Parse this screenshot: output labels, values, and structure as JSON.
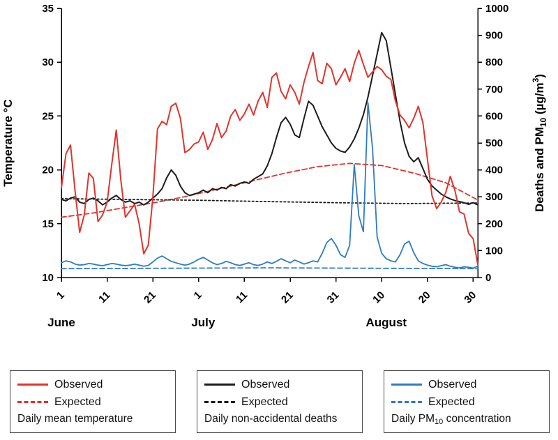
{
  "chart_data": {
    "type": "line",
    "title": "",
    "x": {
      "total_days": 91,
      "tick_days": [
        0,
        10,
        20,
        30,
        40,
        50,
        60,
        70,
        80,
        90
      ],
      "tick_labels": [
        "1",
        "11",
        "21",
        "1",
        "11",
        "21",
        "31",
        "10",
        "20",
        "30"
      ],
      "months": [
        {
          "label": "June",
          "day": 0
        },
        {
          "label": "July",
          "day": 31
        },
        {
          "label": "August",
          "day": 71
        }
      ]
    },
    "axes": {
      "left": {
        "label": "Temperature  °C",
        "min": 10,
        "max": 35,
        "ticks": [
          35,
          30,
          25,
          20,
          15,
          10
        ]
      },
      "right": {
        "label_parts": [
          {
            "t": "Deaths and PM"
          },
          {
            "t": "10",
            "pos": "sub"
          },
          {
            "t": " (µg/m"
          },
          {
            "t": "3",
            "pos": "sup"
          },
          {
            "t": ")"
          }
        ],
        "min": 0,
        "max": 1000,
        "ticks": [
          1000,
          900,
          800,
          700,
          600,
          500,
          400,
          300,
          200,
          100,
          0
        ]
      }
    },
    "series": [
      {
        "id": "temp-observed",
        "name": "Daily mean temperature — Observed",
        "axis": "left",
        "color": "#e0342c",
        "style": "solid",
        "width": 2,
        "values": [
          18.3,
          21.5,
          22.3,
          18.0,
          14.2,
          15.8,
          19.7,
          19.2,
          15.2,
          15.8,
          17.0,
          20.5,
          23.7,
          19.0,
          15.6,
          16.2,
          16.8,
          15.0,
          12.2,
          13.0,
          17.5,
          23.8,
          24.5,
          24.2,
          25.9,
          26.2,
          24.8,
          21.6,
          21.9,
          22.4,
          22.6,
          23.5,
          21.9,
          22.8,
          24.3,
          23.0,
          23.6,
          25.0,
          25.6,
          24.6,
          25.2,
          26.1,
          25.1,
          26.4,
          27.2,
          25.8,
          28.6,
          29.0,
          27.3,
          26.6,
          27.9,
          27.2,
          26.1,
          28.1,
          29.6,
          30.9,
          28.3,
          28.0,
          29.9,
          29.4,
          27.9,
          28.6,
          29.4,
          28.2,
          29.9,
          31.1,
          29.8,
          28.6,
          29.1,
          29.6,
          29.3,
          28.7,
          28.4,
          26.4,
          25.1,
          24.6,
          23.9,
          24.8,
          25.9,
          24.4,
          21.0,
          17.6,
          16.4,
          17.0,
          17.9,
          19.4,
          18.1,
          16.1,
          15.9,
          14.1,
          13.6,
          11.2
        ]
      },
      {
        "id": "temp-expected",
        "name": "Daily mean temperature — Expected",
        "axis": "left",
        "color": "#e0342c",
        "style": "dashed",
        "width": 1.8,
        "days": [
          0,
          7,
          14,
          21,
          28,
          35,
          42,
          49,
          56,
          63,
          70,
          77,
          84,
          91
        ],
        "values": [
          15.6,
          16.0,
          16.5,
          17.0,
          17.6,
          18.3,
          19.0,
          19.7,
          20.3,
          20.6,
          20.4,
          19.7,
          18.8,
          17.2
        ]
      },
      {
        "id": "deaths-observed",
        "name": "Daily non-accidental deaths — Observed",
        "axis": "right",
        "color": "#1c1c1c",
        "style": "solid",
        "width": 2,
        "values": [
          290,
          285,
          295,
          300,
          280,
          275,
          290,
          295,
          285,
          270,
          280,
          295,
          305,
          290,
          280,
          285,
          275,
          280,
          270,
          280,
          295,
          310,
          330,
          370,
          400,
          380,
          340,
          315,
          305,
          310,
          315,
          325,
          315,
          330,
          325,
          335,
          330,
          345,
          340,
          350,
          355,
          350,
          365,
          375,
          385,
          415,
          460,
          520,
          575,
          595,
          570,
          530,
          520,
          590,
          655,
          640,
          600,
          560,
          530,
          500,
          480,
          470,
          465,
          485,
          515,
          555,
          605,
          670,
          750,
          830,
          910,
          880,
          780,
          680,
          580,
          500,
          450,
          430,
          445,
          405,
          365,
          340,
          325,
          310,
          300,
          292,
          286,
          282,
          278,
          272,
          278,
          270
        ]
      },
      {
        "id": "deaths-expected",
        "name": "Daily non-accidental deaths — Expected",
        "axis": "right",
        "color": "#1c1c1c",
        "style": "dotted",
        "width": 1.8,
        "days": [
          0,
          15,
          30,
          45,
          60,
          75,
          91
        ],
        "values": [
          293,
          290,
          287,
          282,
          278,
          275,
          277
        ]
      },
      {
        "id": "pm10-observed",
        "name": "Daily PM10 concentration — Observed",
        "axis": "right",
        "color": "#2e7cc0",
        "style": "solid",
        "width": 1.8,
        "values": [
          55,
          62,
          58,
          50,
          46,
          48,
          52,
          50,
          46,
          44,
          48,
          52,
          50,
          46,
          44,
          46,
          50,
          46,
          42,
          45,
          58,
          72,
          80,
          70,
          60,
          55,
          50,
          46,
          50,
          58,
          68,
          75,
          65,
          55,
          48,
          52,
          60,
          55,
          48,
          45,
          50,
          55,
          48,
          45,
          50,
          58,
          52,
          60,
          70,
          62,
          55,
          65,
          58,
          50,
          55,
          62,
          58,
          90,
          130,
          145,
          120,
          85,
          75,
          120,
          420,
          230,
          170,
          650,
          480,
          150,
          90,
          70,
          62,
          58,
          85,
          125,
          135,
          92,
          62,
          52,
          46,
          42,
          40,
          44,
          48,
          42,
          38,
          36,
          40,
          38,
          35,
          42
        ]
      },
      {
        "id": "pm10-expected",
        "name": "Daily PM10 concentration — Expected",
        "axis": "right",
        "color": "#2e7cc0",
        "style": "dashed",
        "width": 1.8,
        "days": [
          0,
          45,
          91
        ],
        "values": [
          33,
          36,
          33
        ]
      }
    ]
  },
  "legend": {
    "groups": [
      {
        "id": "temperature",
        "color": "#e0342c",
        "observed_label": "Observed",
        "expected_label": "Expected",
        "caption_parts": [
          {
            "t": "Daily mean temperature"
          }
        ]
      },
      {
        "id": "deaths",
        "color": "#1c1c1c",
        "observed_label": "Observed",
        "expected_label": "Expected",
        "caption_parts": [
          {
            "t": "Daily non-accidental deaths"
          }
        ]
      },
      {
        "id": "pm10",
        "color": "#2e7cc0",
        "observed_label": "Observed",
        "expected_label": "Expected",
        "caption_parts": [
          {
            "t": "Daily PM"
          },
          {
            "t": "10",
            "pos": "sub"
          },
          {
            "t": " concentration"
          }
        ]
      }
    ]
  }
}
